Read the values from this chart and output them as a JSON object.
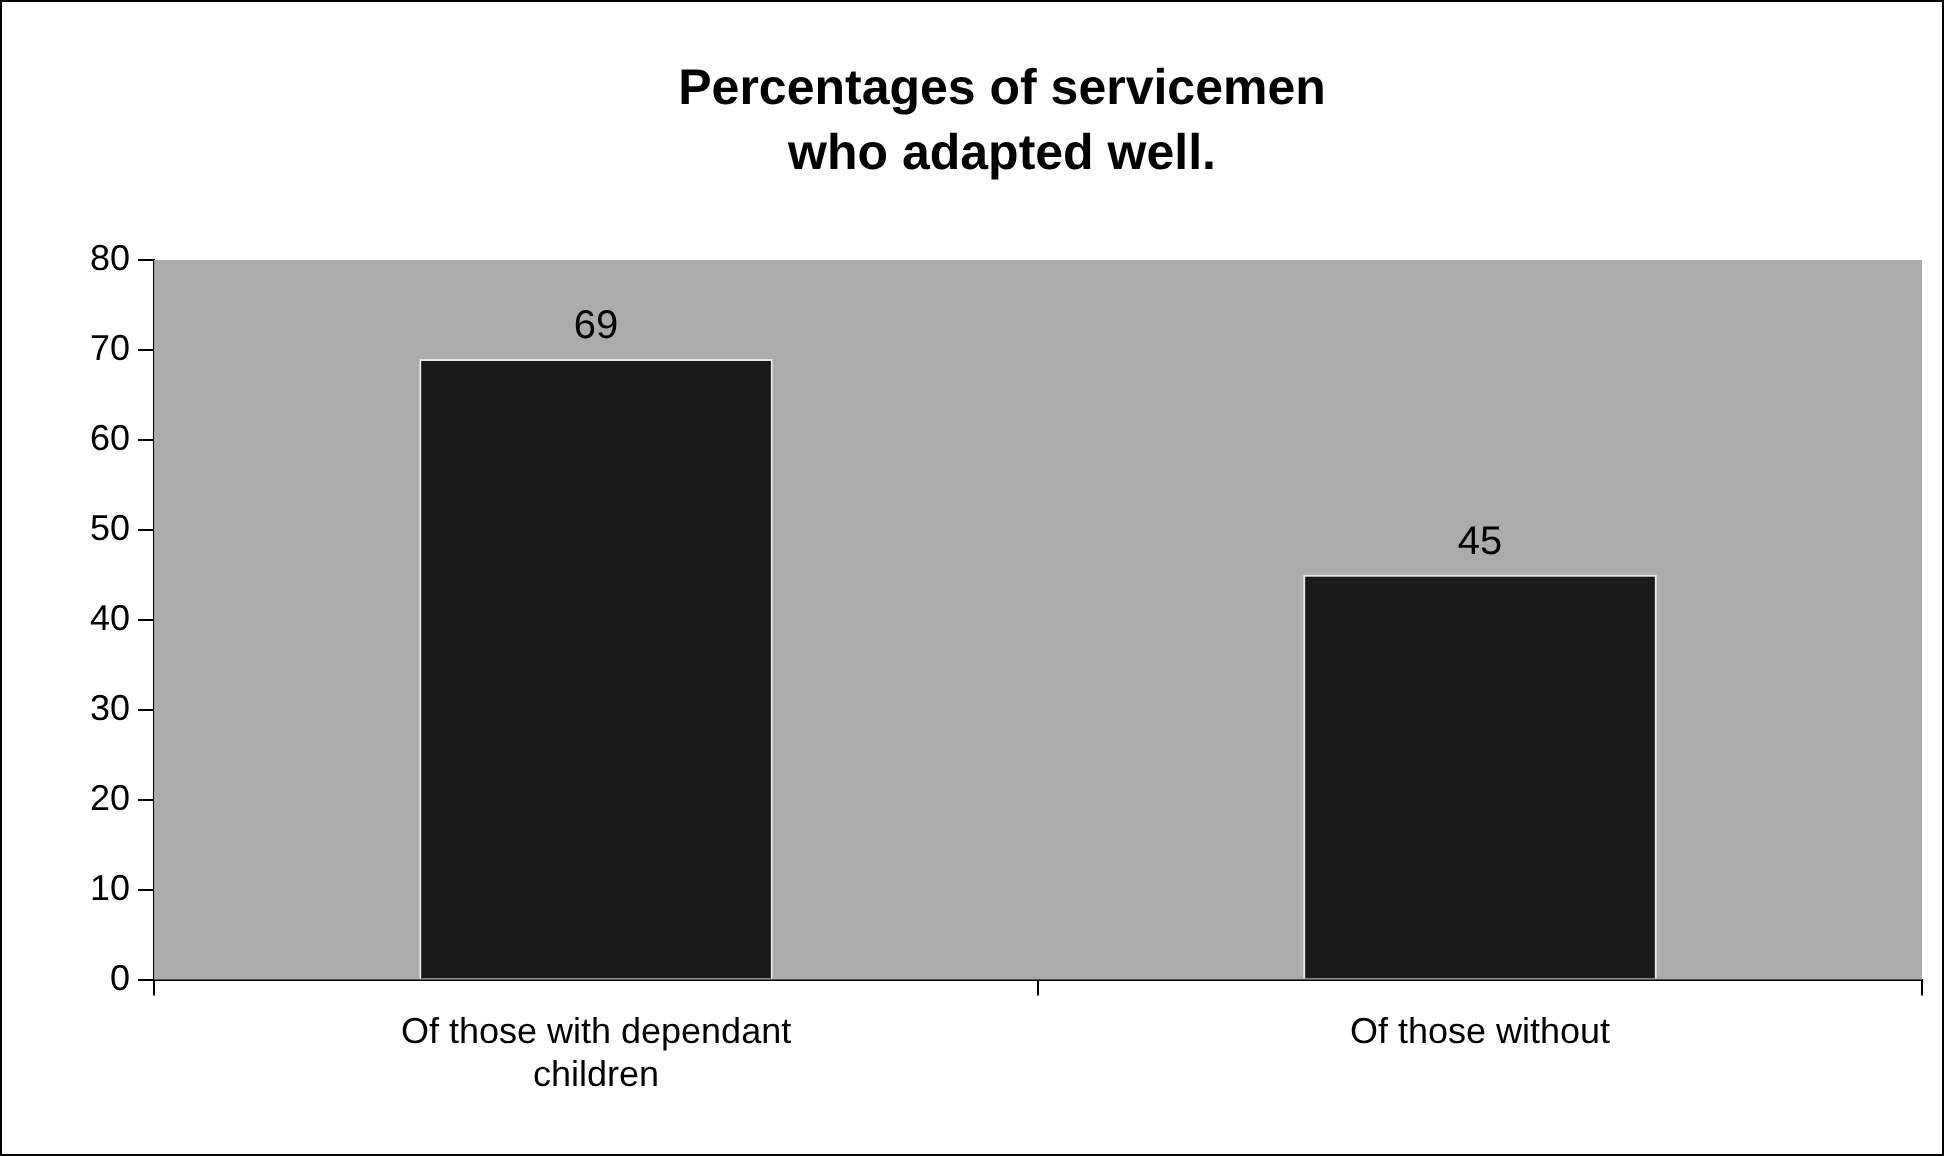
{
  "chart_data": {
    "type": "bar",
    "title": "Percentages of servicemen who adapted well.",
    "categories": [
      "Of those with dependant children",
      "Of those without"
    ],
    "values": [
      69,
      45
    ],
    "color": "#1a1a1a",
    "ylim": [
      0,
      80
    ],
    "yticks": [
      0,
      10,
      20,
      30,
      40,
      50,
      60,
      70,
      80
    ],
    "grid": false,
    "legend": false,
    "data_labels": true
  }
}
